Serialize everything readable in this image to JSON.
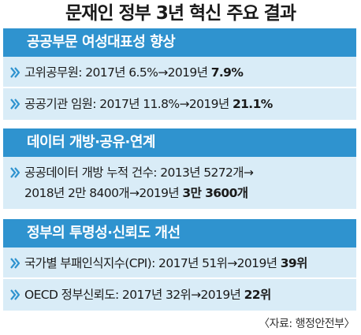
{
  "title": "문재인 정부 3년 혁신 주요 결과",
  "sections": [
    {
      "header": "공공부문 여성대표성 향상",
      "items": [
        {
          "text": "고위공무원: 2017년 6.5%→2019년 ",
          "bold": "7.9%"
        },
        {
          "text": "공공기관 임원: 2017년 11.8%→2019년 ",
          "bold": "21.1%"
        }
      ]
    },
    {
      "header": "데이터 개방·공유·연계",
      "items": [
        {
          "line1": "공공데이터 개방 누적 건수: 2013년 5272개→",
          "line2": "2018년 2만 8400개→2019년 ",
          "bold": "3만 3600개"
        }
      ]
    },
    {
      "header": "정부의 투명성·신뢰도 개선",
      "items": [
        {
          "text": "국가별 부패인식지수(CPI): 2017년 51위→2019년 ",
          "bold": "39위"
        },
        {
          "text": "OECD 정부신뢰도: 2017년 32위→2019년 ",
          "bold": "22위"
        }
      ]
    }
  ],
  "source": "〈자료: 행정안전부〉",
  "colors": {
    "header_bg": "#2f93cf",
    "item_bg": "#d9ecf7",
    "arrow": "#2f93cf"
  },
  "icons": {
    "bullet": "double-chevron-right-icon"
  }
}
